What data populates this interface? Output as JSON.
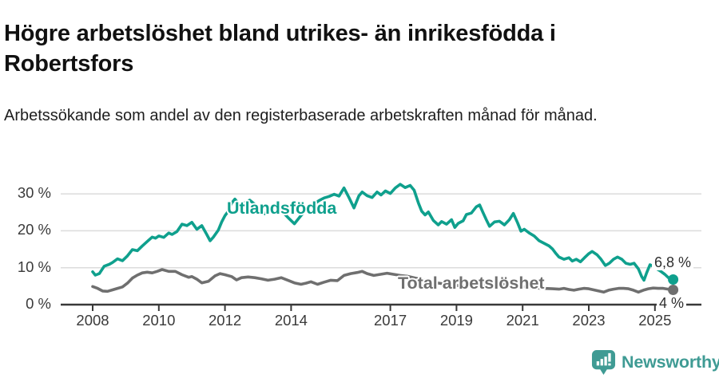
{
  "header": {
    "title": "Högre arbetslöshet bland utrikes- än inrikesfödda i Robertsfors",
    "subtitle": "Arbetssökande som andel av den registerbaserade arbetskraften månad för månad."
  },
  "chart_data": {
    "type": "line",
    "title": "Högre arbetslöshet bland utrikes- än inrikesfödda i Robertsfors",
    "subtitle": "Arbetssökande som andel av den registerbaserade arbetskraften månad för månad.",
    "unit": "%",
    "x_axis": {
      "label": "",
      "ticks": [
        2008,
        2010,
        2012,
        2014,
        2017,
        2019,
        2021,
        2023,
        2025
      ],
      "tick_labels": [
        "2008",
        "2010",
        "2012",
        "2014",
        "2017",
        "2019",
        "2021",
        "2023",
        "2025"
      ],
      "range": [
        2007.05,
        2026.4
      ]
    },
    "y_axis": {
      "label": "",
      "ticks": [
        0,
        10,
        20,
        30
      ],
      "tick_labels": [
        "0 %",
        "10 %",
        "20 %",
        "30 %"
      ],
      "range": [
        0,
        35
      ],
      "gridlines": true
    },
    "colors": {
      "utlandsfodda": "#0FA08D",
      "total": "#6F6F6F",
      "axis": "#383838",
      "gridline": "#dcdcdc"
    },
    "series": [
      {
        "name": "Utlandsfödda",
        "color": "#0FA08D",
        "end_value_label": "6,8 %",
        "end_value": 6.8,
        "points": [
          [
            2008.0,
            8.9
          ],
          [
            2008.08,
            8.0
          ],
          [
            2008.2,
            8.4
          ],
          [
            2008.35,
            10.4
          ],
          [
            2008.5,
            10.9
          ],
          [
            2008.6,
            11.4
          ],
          [
            2008.75,
            12.4
          ],
          [
            2008.9,
            11.9
          ],
          [
            2009.05,
            13.2
          ],
          [
            2009.2,
            14.9
          ],
          [
            2009.35,
            14.6
          ],
          [
            2009.5,
            15.9
          ],
          [
            2009.65,
            17.1
          ],
          [
            2009.8,
            18.3
          ],
          [
            2009.9,
            18.0
          ],
          [
            2010.0,
            18.6
          ],
          [
            2010.15,
            18.2
          ],
          [
            2010.3,
            19.4
          ],
          [
            2010.4,
            19.0
          ],
          [
            2010.55,
            19.8
          ],
          [
            2010.7,
            21.8
          ],
          [
            2010.85,
            21.4
          ],
          [
            2011.0,
            22.3
          ],
          [
            2011.15,
            20.4
          ],
          [
            2011.3,
            21.4
          ],
          [
            2011.45,
            19.0
          ],
          [
            2011.55,
            17.3
          ],
          [
            2011.65,
            18.3
          ],
          [
            2011.8,
            20.2
          ],
          [
            2011.9,
            22.4
          ],
          [
            2012.0,
            24.1
          ],
          [
            2012.1,
            25.3
          ],
          [
            2012.2,
            27.5
          ],
          [
            2012.3,
            28.6
          ],
          [
            2012.45,
            26.8
          ],
          [
            2012.6,
            27.6
          ],
          [
            2012.75,
            28.3
          ],
          [
            2012.9,
            27.2
          ],
          [
            2013.05,
            25.8
          ],
          [
            2013.2,
            24.6
          ],
          [
            2013.35,
            25.8
          ],
          [
            2013.5,
            27.0
          ],
          [
            2013.65,
            26.2
          ],
          [
            2013.8,
            24.6
          ],
          [
            2013.95,
            23.2
          ],
          [
            2014.1,
            21.9
          ],
          [
            2014.25,
            23.6
          ],
          [
            2014.4,
            25.2
          ],
          [
            2014.55,
            26.3
          ],
          [
            2014.7,
            27.3
          ],
          [
            2014.85,
            28.2
          ],
          [
            2015.0,
            28.9
          ],
          [
            2015.15,
            29.3
          ],
          [
            2015.3,
            29.9
          ],
          [
            2015.45,
            29.4
          ],
          [
            2015.6,
            31.6
          ],
          [
            2015.75,
            29.0
          ],
          [
            2015.9,
            26.2
          ],
          [
            2016.05,
            29.5
          ],
          [
            2016.15,
            30.5
          ],
          [
            2016.3,
            29.5
          ],
          [
            2016.45,
            29.0
          ],
          [
            2016.6,
            30.5
          ],
          [
            2016.72,
            29.7
          ],
          [
            2016.85,
            30.8
          ],
          [
            2017.0,
            30.1
          ],
          [
            2017.15,
            31.6
          ],
          [
            2017.3,
            32.6
          ],
          [
            2017.45,
            31.7
          ],
          [
            2017.6,
            32.3
          ],
          [
            2017.72,
            31.0
          ],
          [
            2017.85,
            27.5
          ],
          [
            2017.95,
            25.3
          ],
          [
            2018.05,
            24.3
          ],
          [
            2018.15,
            25.1
          ],
          [
            2018.3,
            22.8
          ],
          [
            2018.45,
            21.6
          ],
          [
            2018.55,
            22.5
          ],
          [
            2018.7,
            21.8
          ],
          [
            2018.85,
            23.0
          ],
          [
            2018.95,
            20.9
          ],
          [
            2019.05,
            22.0
          ],
          [
            2019.2,
            22.7
          ],
          [
            2019.3,
            24.4
          ],
          [
            2019.45,
            24.8
          ],
          [
            2019.6,
            26.5
          ],
          [
            2019.7,
            27.0
          ],
          [
            2019.8,
            25.0
          ],
          [
            2019.9,
            23.0
          ],
          [
            2020.0,
            21.2
          ],
          [
            2020.15,
            22.4
          ],
          [
            2020.3,
            22.6
          ],
          [
            2020.45,
            21.6
          ],
          [
            2020.6,
            23.0
          ],
          [
            2020.72,
            24.7
          ],
          [
            2020.85,
            22.1
          ],
          [
            2020.95,
            19.9
          ],
          [
            2021.05,
            20.4
          ],
          [
            2021.2,
            19.4
          ],
          [
            2021.35,
            18.6
          ],
          [
            2021.5,
            17.3
          ],
          [
            2021.65,
            16.6
          ],
          [
            2021.8,
            15.9
          ],
          [
            2021.9,
            15.1
          ],
          [
            2022.0,
            13.9
          ],
          [
            2022.1,
            12.9
          ],
          [
            2022.25,
            12.3
          ],
          [
            2022.4,
            12.7
          ],
          [
            2022.5,
            11.8
          ],
          [
            2022.62,
            12.3
          ],
          [
            2022.75,
            11.6
          ],
          [
            2022.87,
            12.7
          ],
          [
            2023.0,
            13.8
          ],
          [
            2023.1,
            14.4
          ],
          [
            2023.25,
            13.5
          ],
          [
            2023.37,
            12.3
          ],
          [
            2023.5,
            10.6
          ],
          [
            2023.62,
            11.2
          ],
          [
            2023.75,
            12.3
          ],
          [
            2023.87,
            12.9
          ],
          [
            2024.0,
            12.3
          ],
          [
            2024.12,
            11.2
          ],
          [
            2024.25,
            10.9
          ],
          [
            2024.37,
            11.2
          ],
          [
            2024.5,
            9.7
          ],
          [
            2024.6,
            7.6
          ],
          [
            2024.67,
            6.6
          ],
          [
            2024.75,
            8.6
          ],
          [
            2024.85,
            10.8
          ],
          [
            2024.95,
            10.4
          ],
          [
            2025.05,
            9.7
          ],
          [
            2025.15,
            9.2
          ],
          [
            2025.3,
            8.2
          ],
          [
            2025.42,
            7.2
          ],
          [
            2025.55,
            6.8
          ]
        ]
      },
      {
        "name": "Total arbetslöshet",
        "color": "#6F6F6F",
        "end_value_label": "4 %",
        "end_value": 4.0,
        "points": [
          [
            2008.0,
            4.9
          ],
          [
            2008.15,
            4.4
          ],
          [
            2008.3,
            3.7
          ],
          [
            2008.45,
            3.6
          ],
          [
            2008.6,
            4.0
          ],
          [
            2008.75,
            4.4
          ],
          [
            2008.9,
            4.8
          ],
          [
            2009.05,
            5.8
          ],
          [
            2009.2,
            7.2
          ],
          [
            2009.35,
            8.0
          ],
          [
            2009.5,
            8.6
          ],
          [
            2009.65,
            8.8
          ],
          [
            2009.8,
            8.6
          ],
          [
            2009.95,
            9.0
          ],
          [
            2010.1,
            9.5
          ],
          [
            2010.3,
            9.0
          ],
          [
            2010.5,
            9.0
          ],
          [
            2010.7,
            8.1
          ],
          [
            2010.9,
            7.4
          ],
          [
            2011.0,
            7.6
          ],
          [
            2011.15,
            6.9
          ],
          [
            2011.3,
            5.9
          ],
          [
            2011.5,
            6.3
          ],
          [
            2011.7,
            7.8
          ],
          [
            2011.85,
            8.4
          ],
          [
            2012.0,
            8.1
          ],
          [
            2012.2,
            7.6
          ],
          [
            2012.35,
            6.7
          ],
          [
            2012.5,
            7.3
          ],
          [
            2012.7,
            7.5
          ],
          [
            2012.9,
            7.3
          ],
          [
            2013.1,
            7.0
          ],
          [
            2013.3,
            6.6
          ],
          [
            2013.5,
            6.9
          ],
          [
            2013.7,
            7.3
          ],
          [
            2013.9,
            6.6
          ],
          [
            2014.1,
            5.9
          ],
          [
            2014.3,
            5.5
          ],
          [
            2014.45,
            5.8
          ],
          [
            2014.6,
            6.2
          ],
          [
            2014.8,
            5.5
          ],
          [
            2015.0,
            6.1
          ],
          [
            2015.2,
            6.6
          ],
          [
            2015.4,
            6.5
          ],
          [
            2015.6,
            7.9
          ],
          [
            2015.8,
            8.4
          ],
          [
            2016.0,
            8.7
          ],
          [
            2016.15,
            9.0
          ],
          [
            2016.3,
            8.4
          ],
          [
            2016.5,
            7.9
          ],
          [
            2016.7,
            8.2
          ],
          [
            2016.9,
            8.5
          ],
          [
            2017.1,
            8.2
          ],
          [
            2017.3,
            7.9
          ],
          [
            2017.5,
            7.7
          ],
          [
            2017.8,
            7.1
          ],
          [
            2018.1,
            6.4
          ],
          [
            2018.4,
            5.9
          ],
          [
            2018.7,
            5.5
          ],
          [
            2019.0,
            5.2
          ],
          [
            2019.3,
            5.0
          ],
          [
            2019.6,
            4.9
          ],
          [
            2019.9,
            5.1
          ],
          [
            2020.1,
            5.4
          ],
          [
            2020.4,
            5.6
          ],
          [
            2020.7,
            5.2
          ],
          [
            2021.0,
            4.9
          ],
          [
            2021.3,
            4.6
          ],
          [
            2021.6,
            4.4
          ],
          [
            2021.9,
            4.3
          ],
          [
            2022.1,
            4.2
          ],
          [
            2022.25,
            4.4
          ],
          [
            2022.4,
            4.1
          ],
          [
            2022.55,
            3.9
          ],
          [
            2022.7,
            4.2
          ],
          [
            2022.85,
            4.4
          ],
          [
            2023.0,
            4.3
          ],
          [
            2023.15,
            4.0
          ],
          [
            2023.3,
            3.7
          ],
          [
            2023.45,
            3.4
          ],
          [
            2023.6,
            3.9
          ],
          [
            2023.75,
            4.2
          ],
          [
            2023.9,
            4.4
          ],
          [
            2024.05,
            4.4
          ],
          [
            2024.2,
            4.3
          ],
          [
            2024.35,
            3.9
          ],
          [
            2024.5,
            3.4
          ],
          [
            2024.65,
            3.9
          ],
          [
            2024.8,
            4.3
          ],
          [
            2024.95,
            4.5
          ],
          [
            2025.1,
            4.4
          ],
          [
            2025.25,
            4.4
          ],
          [
            2025.4,
            4.2
          ],
          [
            2025.55,
            4.0
          ]
        ]
      }
    ],
    "legend_position": "inline-labels"
  },
  "branding": {
    "logo_text": "Newsworthy",
    "logo_color": "#3F9B94",
    "logo_icon": "bar-chart-speech-pin-icon"
  }
}
